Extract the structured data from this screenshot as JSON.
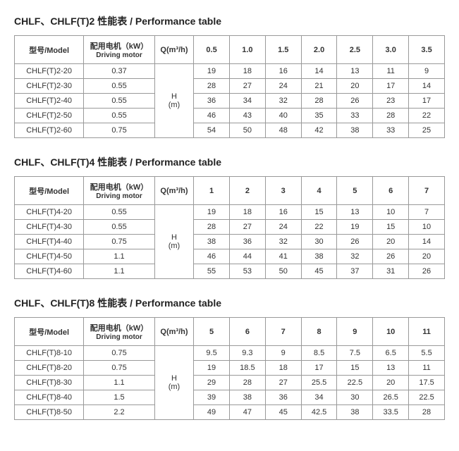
{
  "labels": {
    "model": "型号/Model",
    "motor_cn": "配用电机（kW）",
    "motor_en": "Driving motor",
    "q": "Q(m³/h)",
    "h": "H",
    "h_unit": "(m)"
  },
  "tables": [
    {
      "title": "CHLF、CHLF(T)2  性能表 / Performance table",
      "q_headers": [
        "0.5",
        "1.0",
        "1.5",
        "2.0",
        "2.5",
        "3.0",
        "3.5"
      ],
      "rows": [
        {
          "model": "CHLF(T)2-20",
          "motor": "0.37",
          "vals": [
            "19",
            "18",
            "16",
            "14",
            "13",
            "11",
            "9"
          ]
        },
        {
          "model": "CHLF(T)2-30",
          "motor": "0.55",
          "vals": [
            "28",
            "27",
            "24",
            "21",
            "20",
            "17",
            "14"
          ]
        },
        {
          "model": "CHLF(T)2-40",
          "motor": "0.55",
          "vals": [
            "36",
            "34",
            "32",
            "28",
            "26",
            "23",
            "17"
          ]
        },
        {
          "model": "CHLF(T)2-50",
          "motor": "0.55",
          "vals": [
            "46",
            "43",
            "40",
            "35",
            "33",
            "28",
            "22"
          ]
        },
        {
          "model": "CHLF(T)2-60",
          "motor": "0.75",
          "vals": [
            "54",
            "50",
            "48",
            "42",
            "38",
            "33",
            "25"
          ]
        }
      ]
    },
    {
      "title": "CHLF、CHLF(T)4  性能表 / Performance table",
      "q_headers": [
        "1",
        "2",
        "3",
        "4",
        "5",
        "6",
        "7"
      ],
      "rows": [
        {
          "model": "CHLF(T)4-20",
          "motor": "0.55",
          "vals": [
            "19",
            "18",
            "16",
            "15",
            "13",
            "10",
            "7"
          ]
        },
        {
          "model": "CHLF(T)4-30",
          "motor": "0.55",
          "vals": [
            "28",
            "27",
            "24",
            "22",
            "19",
            "15",
            "10"
          ]
        },
        {
          "model": "CHLF(T)4-40",
          "motor": "0.75",
          "vals": [
            "38",
            "36",
            "32",
            "30",
            "26",
            "20",
            "14"
          ]
        },
        {
          "model": "CHLF(T)4-50",
          "motor": "1.1",
          "vals": [
            "46",
            "44",
            "41",
            "38",
            "32",
            "26",
            "20"
          ]
        },
        {
          "model": "CHLF(T)4-60",
          "motor": "1.1",
          "vals": [
            "55",
            "53",
            "50",
            "45",
            "37",
            "31",
            "26"
          ]
        }
      ]
    },
    {
      "title": "CHLF、CHLF(T)8   性能表 / Performance table",
      "q_headers": [
        "5",
        "6",
        "7",
        "8",
        "9",
        "10",
        "11"
      ],
      "rows": [
        {
          "model": "CHLF(T)8-10",
          "motor": "0.75",
          "vals": [
            "9.5",
            "9.3",
            "9",
            "8.5",
            "7.5",
            "6.5",
            "5.5"
          ]
        },
        {
          "model": "CHLF(T)8-20",
          "motor": "0.75",
          "vals": [
            "19",
            "18.5",
            "18",
            "17",
            "15",
            "13",
            "11"
          ]
        },
        {
          "model": "CHLF(T)8-30",
          "motor": "1.1",
          "vals": [
            "29",
            "28",
            "27",
            "25.5",
            "22.5",
            "20",
            "17.5"
          ]
        },
        {
          "model": "CHLF(T)8-40",
          "motor": "1.5",
          "vals": [
            "39",
            "38",
            "36",
            "34",
            "30",
            "26.5",
            "22.5"
          ]
        },
        {
          "model": "CHLF(T)8-50",
          "motor": "2.2",
          "vals": [
            "49",
            "47",
            "45",
            "42.5",
            "38",
            "33.5",
            "28"
          ]
        }
      ]
    }
  ]
}
